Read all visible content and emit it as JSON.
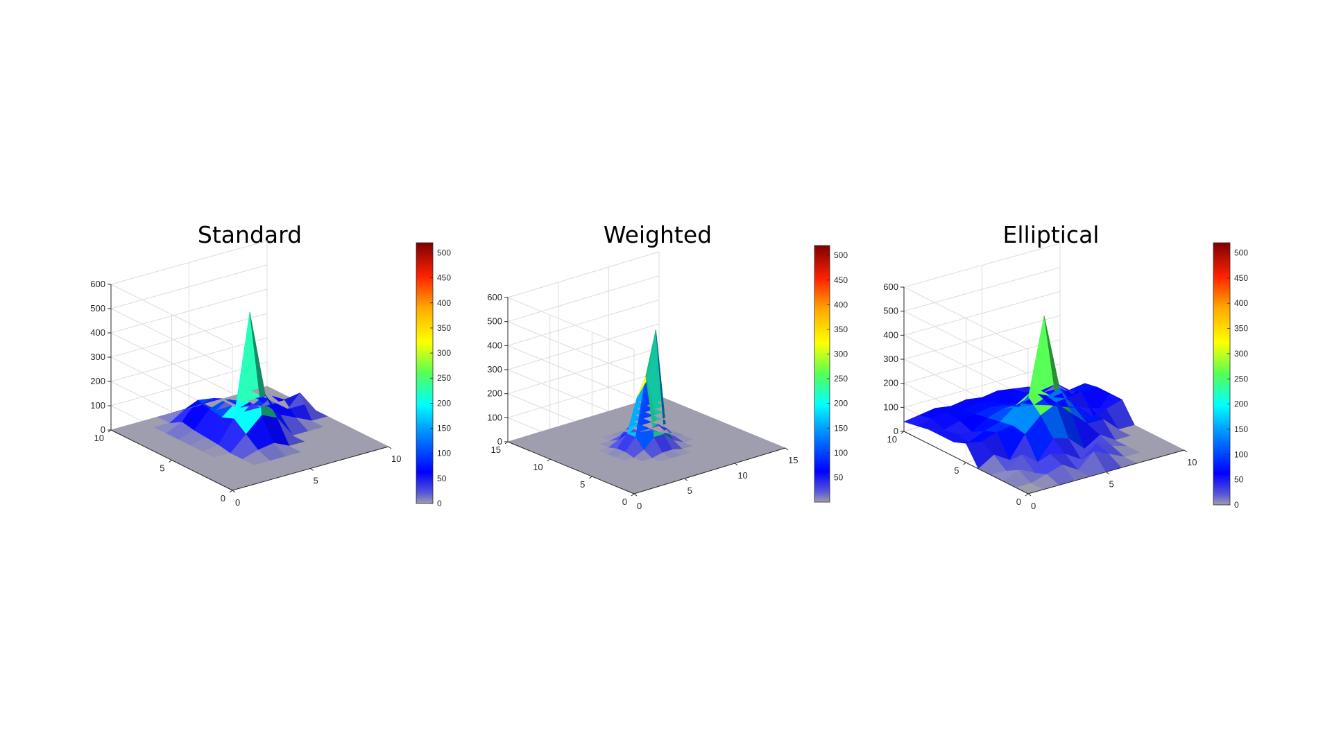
{
  "chart_data": [
    {
      "type": "surface",
      "title": "Standard",
      "grid": true,
      "xlim": [
        0,
        10
      ],
      "ylim": [
        0,
        10
      ],
      "zlim": [
        0,
        600
      ],
      "xticks": [
        0,
        5,
        10
      ],
      "yticks": [
        0,
        5,
        10
      ],
      "zticks": [
        0,
        100,
        200,
        300,
        400,
        500,
        600
      ],
      "colorbar": {
        "clim": [
          0,
          520
        ],
        "ticks": [
          0,
          50,
          100,
          150,
          200,
          250,
          300,
          350,
          400,
          450,
          500
        ],
        "colormap": "jet-gray-low"
      },
      "peak": {
        "x": 5,
        "y": 5,
        "z": 520
      },
      "surface_heights": [
        [
          0,
          0,
          0,
          0,
          0,
          0,
          0,
          0,
          0,
          0,
          0
        ],
        [
          0,
          0,
          0,
          0,
          0,
          0,
          0,
          0,
          0,
          0,
          0
        ],
        [
          0,
          0,
          0,
          0,
          0,
          0,
          0,
          0,
          0,
          0,
          0
        ],
        [
          0,
          0,
          0,
          0,
          20,
          30,
          0,
          0,
          0,
          0,
          0
        ],
        [
          0,
          0,
          0,
          0,
          60,
          120,
          90,
          0,
          0,
          0,
          0
        ],
        [
          0,
          0,
          0,
          10,
          100,
          520,
          160,
          60,
          30,
          0,
          0
        ],
        [
          0,
          0,
          0,
          15,
          80,
          130,
          95,
          70,
          80,
          90,
          0
        ],
        [
          0,
          0,
          0,
          20,
          90,
          110,
          60,
          80,
          70,
          0,
          0
        ],
        [
          0,
          0,
          0,
          30,
          100,
          90,
          70,
          0,
          0,
          0,
          0
        ],
        [
          0,
          0,
          0,
          0,
          40,
          40,
          0,
          0,
          0,
          0,
          0
        ],
        [
          0,
          0,
          0,
          0,
          0,
          0,
          0,
          0,
          0,
          0,
          0
        ]
      ]
    },
    {
      "type": "surface",
      "title": "Weighted",
      "grid": true,
      "xlim": [
        0,
        15
      ],
      "ylim": [
        0,
        15
      ],
      "zlim": [
        0,
        600
      ],
      "xticks": [
        0,
        5,
        10,
        15
      ],
      "yticks": [
        0,
        5,
        10,
        15
      ],
      "zticks": [
        0,
        100,
        200,
        300,
        400,
        500,
        600
      ],
      "colorbar": {
        "clim": [
          0,
          520
        ],
        "ticks": [
          50,
          100,
          150,
          200,
          250,
          300,
          350,
          400,
          450,
          500
        ],
        "colormap": "jet-gray-low"
      },
      "peak": {
        "x": 7.5,
        "y": 7.5,
        "z": 480
      },
      "surface_heights": [
        [
          0,
          0,
          0,
          0,
          0,
          0,
          0,
          0,
          0,
          0,
          0,
          0,
          0,
          0,
          0,
          0
        ],
        [
          0,
          0,
          0,
          0,
          0,
          0,
          0,
          0,
          0,
          0,
          0,
          0,
          0,
          0,
          0,
          0
        ],
        [
          0,
          0,
          0,
          0,
          0,
          0,
          0,
          0,
          0,
          0,
          0,
          0,
          0,
          0,
          0,
          0
        ],
        [
          0,
          0,
          0,
          0,
          0,
          0,
          0,
          0,
          0,
          0,
          0,
          0,
          0,
          0,
          0,
          0
        ],
        [
          0,
          0,
          0,
          0,
          0,
          0,
          0,
          0,
          0,
          0,
          0,
          0,
          0,
          0,
          0,
          0
        ],
        [
          0,
          0,
          0,
          0,
          0,
          0,
          0,
          10,
          10,
          0,
          0,
          0,
          0,
          0,
          0,
          0
        ],
        [
          0,
          0,
          0,
          0,
          0,
          0,
          20,
          60,
          60,
          20,
          0,
          0,
          0,
          0,
          0,
          0
        ],
        [
          0,
          0,
          0,
          0,
          0,
          10,
          60,
          300,
          480,
          60,
          10,
          0,
          0,
          0,
          0,
          0
        ],
        [
          0,
          0,
          0,
          0,
          0,
          10,
          60,
          200,
          260,
          60,
          10,
          0,
          0,
          0,
          0,
          0
        ],
        [
          0,
          0,
          0,
          0,
          0,
          0,
          20,
          60,
          60,
          20,
          0,
          0,
          0,
          0,
          0,
          0
        ],
        [
          0,
          0,
          0,
          0,
          0,
          0,
          0,
          10,
          10,
          0,
          0,
          0,
          0,
          0,
          0,
          0
        ],
        [
          0,
          0,
          0,
          0,
          0,
          0,
          0,
          0,
          0,
          0,
          0,
          0,
          0,
          0,
          0,
          0
        ],
        [
          0,
          0,
          0,
          0,
          0,
          0,
          0,
          0,
          0,
          0,
          0,
          0,
          0,
          0,
          0,
          0
        ],
        [
          0,
          0,
          0,
          0,
          0,
          0,
          0,
          0,
          0,
          0,
          0,
          0,
          0,
          0,
          0,
          0
        ],
        [
          0,
          0,
          0,
          0,
          0,
          0,
          0,
          0,
          0,
          0,
          0,
          0,
          0,
          0,
          0,
          0
        ],
        [
          0,
          0,
          0,
          0,
          0,
          0,
          0,
          0,
          0,
          0,
          0,
          0,
          0,
          0,
          0,
          0
        ]
      ]
    },
    {
      "type": "surface",
      "title": "Elliptical",
      "grid": true,
      "xlim": [
        0,
        10
      ],
      "ylim": [
        0,
        10
      ],
      "zlim": [
        0,
        600
      ],
      "xticks": [
        0,
        5,
        10
      ],
      "yticks": [
        0,
        5,
        10
      ],
      "zticks": [
        0,
        100,
        200,
        300,
        400,
        500,
        600
      ],
      "colorbar": {
        "clim": [
          0,
          520
        ],
        "ticks": [
          0,
          50,
          100,
          150,
          200,
          250,
          300,
          350,
          400,
          450,
          500
        ],
        "colormap": "jet-gray-low"
      },
      "peak": {
        "x": 5,
        "y": 5,
        "z": 520
      },
      "surface_heights": [
        [
          0,
          0,
          0,
          0,
          0,
          0,
          0,
          0,
          0,
          0,
          0
        ],
        [
          0,
          0,
          20,
          40,
          0,
          60,
          30,
          0,
          0,
          0,
          0
        ],
        [
          0,
          30,
          0,
          60,
          40,
          0,
          50,
          20,
          0,
          0,
          0
        ],
        [
          0,
          0,
          50,
          0,
          80,
          60,
          0,
          40,
          0,
          0,
          0
        ],
        [
          0,
          40,
          0,
          90,
          150,
          180,
          120,
          60,
          60,
          0,
          0
        ],
        [
          80,
          70,
          90,
          100,
          200,
          520,
          200,
          100,
          80,
          60,
          80
        ],
        [
          60,
          40,
          70,
          90,
          140,
          180,
          140,
          80,
          60,
          0,
          80
        ],
        [
          60,
          50,
          40,
          80,
          100,
          90,
          80,
          60,
          70,
          80,
          80
        ],
        [
          60,
          40,
          60,
          70,
          80,
          70,
          60,
          80,
          50,
          60,
          70
        ],
        [
          50,
          60,
          70,
          60,
          70,
          60,
          70,
          60,
          50,
          60,
          0
        ],
        [
          40,
          50,
          60,
          50,
          60,
          50,
          60,
          50,
          40,
          0,
          0
        ]
      ]
    }
  ]
}
